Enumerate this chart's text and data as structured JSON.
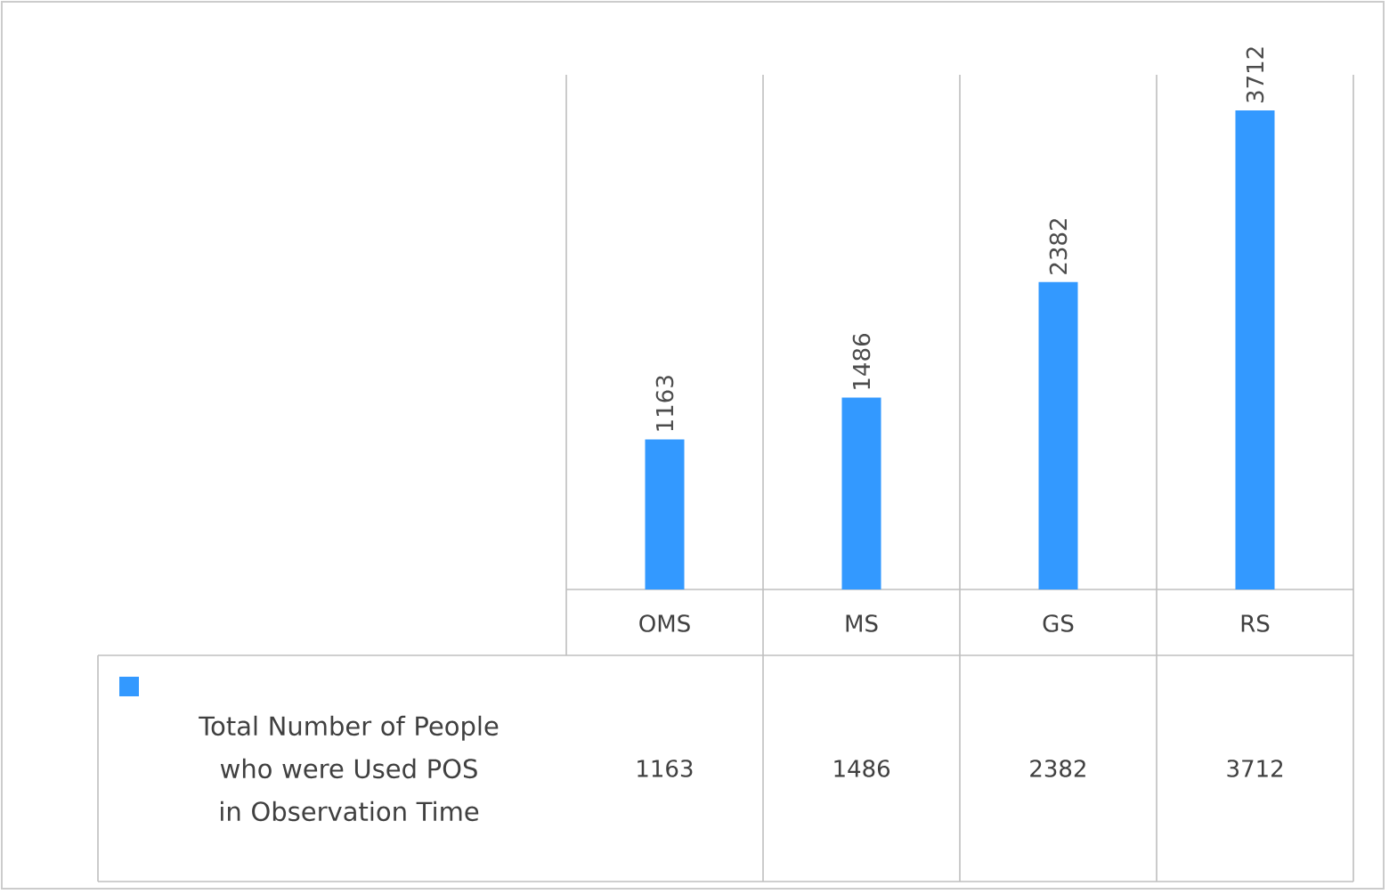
{
  "chart_data": {
    "type": "bar",
    "categories": [
      "OMS",
      "MS",
      "GS",
      "RS"
    ],
    "series": [
      {
        "name": "Total Number of People who were Used POS in Observation Time",
        "color": "#3399ff",
        "values": [
          1163,
          1486,
          2382,
          3712
        ],
        "value_labels": [
          "1163",
          "1486",
          "2382",
          "3712"
        ]
      }
    ],
    "data_labels": true,
    "legend": "bottom"
  }
}
